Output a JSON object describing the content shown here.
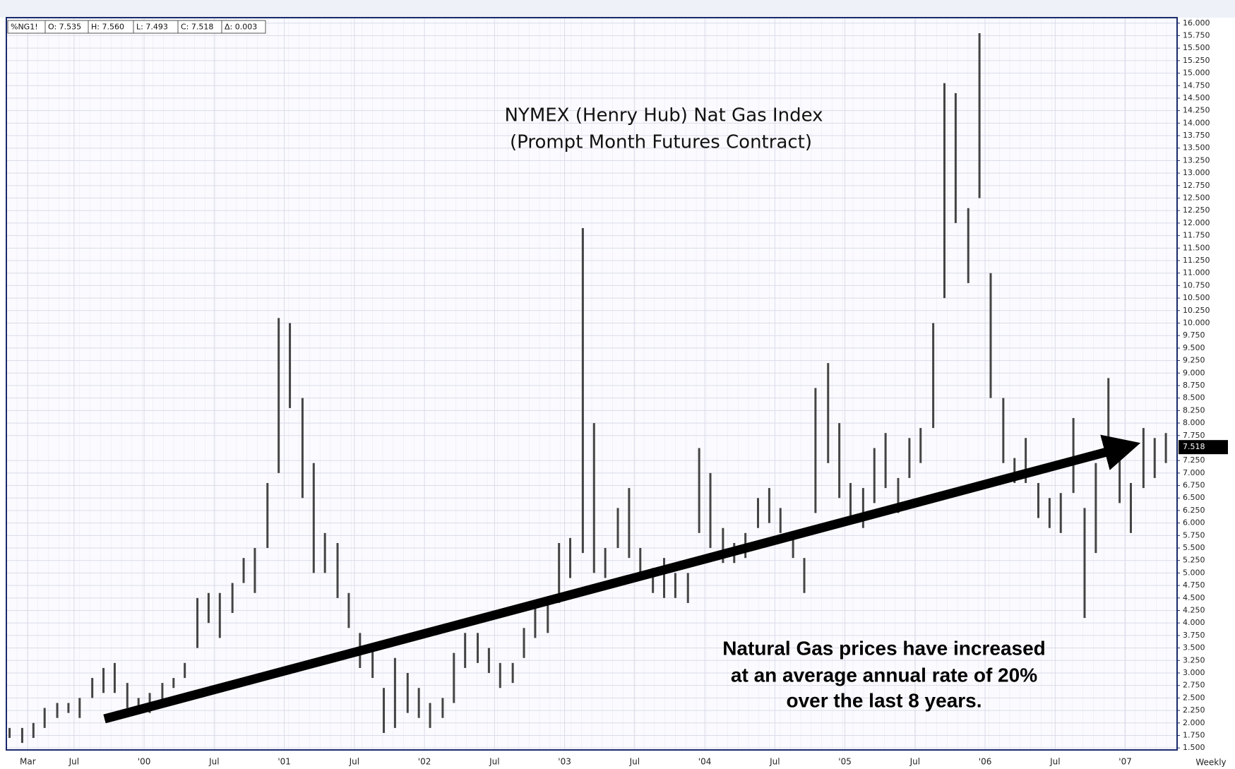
{
  "chart_data": {
    "type": "range_bar",
    "header_fields": [
      "%NG1!",
      "O: 7.535",
      "H: 7.560",
      "L: 7.493",
      "C: 7.518",
      "Δ: 0.003"
    ],
    "title": [
      "NYMEX (Henry Hub) Nat Gas Index",
      "(Prompt Month Futures Contract)"
    ],
    "annotation": [
      "Natural Gas prices have increased",
      "at an average annual rate of 20%",
      "over the last 8 years."
    ],
    "interval_label": "Weekly",
    "last_price": 7.518,
    "color": "#444444",
    "grid": true,
    "x": [
      1999.04,
      1999.13,
      1999.21,
      1999.29,
      1999.38,
      1999.46,
      1999.54,
      1999.63,
      1999.71,
      1999.79,
      1999.88,
      1999.96,
      2000.04,
      2000.13,
      2000.21,
      2000.29,
      2000.38,
      2000.46,
      2000.54,
      2000.63,
      2000.71,
      2000.79,
      2000.88,
      2000.96,
      2001.04,
      2001.13,
      2001.21,
      2001.29,
      2001.38,
      2001.46,
      2001.54,
      2001.63,
      2001.71,
      2001.79,
      2001.88,
      2001.96,
      2002.04,
      2002.13,
      2002.21,
      2002.29,
      2002.38,
      2002.46,
      2002.54,
      2002.63,
      2002.71,
      2002.79,
      2002.88,
      2002.96,
      2003.04,
      2003.13,
      2003.21,
      2003.29,
      2003.38,
      2003.46,
      2003.54,
      2003.63,
      2003.71,
      2003.79,
      2003.88,
      2003.96,
      2004.04,
      2004.13,
      2004.21,
      2004.29,
      2004.38,
      2004.46,
      2004.54,
      2004.63,
      2004.71,
      2004.79,
      2004.88,
      2004.96,
      2005.04,
      2005.13,
      2005.21,
      2005.29,
      2005.38,
      2005.46,
      2005.54,
      2005.63,
      2005.71,
      2005.79,
      2005.88,
      2005.96,
      2006.04,
      2006.13,
      2006.21,
      2006.29,
      2006.38,
      2006.46,
      2006.54,
      2006.63,
      2006.71,
      2006.79,
      2006.88,
      2006.96,
      2007.04,
      2007.13,
      2007.21,
      2007.29
    ],
    "high": [
      1.9,
      1.9,
      2.0,
      2.3,
      2.4,
      2.4,
      2.5,
      2.9,
      3.1,
      3.2,
      2.8,
      2.5,
      2.6,
      2.8,
      2.9,
      3.2,
      4.5,
      4.6,
      4.6,
      4.8,
      5.3,
      5.5,
      6.8,
      10.1,
      10.0,
      8.5,
      7.2,
      5.8,
      5.6,
      4.6,
      3.8,
      3.5,
      2.7,
      3.3,
      3.0,
      2.7,
      2.4,
      2.5,
      3.4,
      3.8,
      3.8,
      3.5,
      3.2,
      3.2,
      3.9,
      4.3,
      4.4,
      5.6,
      5.7,
      11.9,
      8.0,
      5.5,
      6.3,
      6.7,
      5.5,
      5.1,
      5.3,
      5.0,
      5.0,
      7.5,
      7.0,
      5.9,
      5.6,
      5.8,
      6.5,
      6.7,
      6.3,
      5.8,
      5.3,
      8.7,
      9.2,
      8.0,
      6.8,
      6.7,
      7.5,
      7.8,
      6.9,
      7.7,
      7.9,
      10.0,
      14.8,
      14.6,
      12.3,
      15.8,
      11.0,
      8.5,
      7.3,
      7.7,
      6.8,
      6.5,
      6.6,
      8.1,
      6.3,
      7.2,
      8.9,
      7.6,
      6.8,
      7.9,
      7.7,
      7.8
    ],
    "low": [
      1.7,
      1.6,
      1.7,
      1.9,
      2.1,
      2.2,
      2.1,
      2.5,
      2.6,
      2.6,
      2.3,
      2.2,
      2.2,
      2.4,
      2.7,
      2.9,
      3.5,
      4.0,
      3.7,
      4.2,
      4.8,
      4.6,
      5.5,
      7.0,
      8.3,
      6.5,
      5.0,
      5.0,
      4.5,
      3.9,
      3.1,
      2.9,
      1.8,
      1.9,
      2.2,
      2.1,
      1.9,
      2.1,
      2.4,
      3.1,
      3.2,
      3.0,
      2.7,
      2.8,
      3.3,
      3.7,
      3.8,
      4.4,
      4.9,
      5.4,
      5.0,
      4.9,
      5.5,
      5.3,
      4.9,
      4.6,
      4.5,
      4.5,
      4.4,
      5.8,
      5.5,
      5.2,
      5.2,
      5.3,
      5.9,
      6.0,
      5.8,
      5.3,
      4.6,
      6.2,
      7.2,
      6.5,
      6.0,
      5.9,
      6.4,
      6.7,
      6.2,
      6.9,
      7.2,
      7.9,
      10.5,
      12.0,
      10.8,
      12.5,
      8.5,
      7.2,
      6.8,
      6.8,
      6.1,
      5.9,
      5.8,
      6.6,
      4.1,
      5.4,
      7.4,
      6.4,
      5.8,
      6.7,
      6.9,
      7.2
    ],
    "xlim": [
      1999.017,
      2007.37
    ],
    "xticks": [
      {
        "value": 1999.17,
        "label": "Mar"
      },
      {
        "value": 1999.5,
        "label": "Jul"
      },
      {
        "value": 2000,
        "label": "'00"
      },
      {
        "value": 2000.5,
        "label": "Jul"
      },
      {
        "value": 2001,
        "label": "'01"
      },
      {
        "value": 2001.5,
        "label": "Jul"
      },
      {
        "value": 2002,
        "label": "'02"
      },
      {
        "value": 2002.5,
        "label": "Jul"
      },
      {
        "value": 2003,
        "label": "'03"
      },
      {
        "value": 2003.5,
        "label": "Jul"
      },
      {
        "value": 2004,
        "label": "'04"
      },
      {
        "value": 2004.5,
        "label": "Jul"
      },
      {
        "value": 2005,
        "label": "'05"
      },
      {
        "value": 2005.5,
        "label": "Jul"
      },
      {
        "value": 2006,
        "label": "'06"
      },
      {
        "value": 2006.5,
        "label": "Jul"
      },
      {
        "value": 2007,
        "label": "'07"
      }
    ],
    "ylim": [
      1.46,
      16.11
    ],
    "yticks": [
      {
        "value": 1.5,
        "label": "1.500"
      },
      {
        "value": 1.75,
        "label": "1.750"
      },
      {
        "value": 2,
        "label": "2.000"
      },
      {
        "value": 2.25,
        "label": "2.250"
      },
      {
        "value": 2.5,
        "label": "2.500"
      },
      {
        "value": 2.75,
        "label": "2.750"
      },
      {
        "value": 3,
        "label": "3.000"
      },
      {
        "value": 3.25,
        "label": "3.250"
      },
      {
        "value": 3.5,
        "label": "3.500"
      },
      {
        "value": 3.75,
        "label": "3.750"
      },
      {
        "value": 4,
        "label": "4.000"
      },
      {
        "value": 4.25,
        "label": "4.250"
      },
      {
        "value": 4.5,
        "label": "4.500"
      },
      {
        "value": 4.75,
        "label": "4.750"
      },
      {
        "value": 5,
        "label": "5.000"
      },
      {
        "value": 5.25,
        "label": "5.250"
      },
      {
        "value": 5.5,
        "label": "5.500"
      },
      {
        "value": 5.75,
        "label": "5.750"
      },
      {
        "value": 6,
        "label": "6.000"
      },
      {
        "value": 6.25,
        "label": "6.250"
      },
      {
        "value": 6.5,
        "label": "6.500"
      },
      {
        "value": 6.75,
        "label": "6.750"
      },
      {
        "value": 7,
        "label": "7.000"
      },
      {
        "value": 7.25,
        "label": "7.250"
      },
      {
        "value": 7.75,
        "label": "7.750"
      },
      {
        "value": 8,
        "label": "8.000"
      },
      {
        "value": 8.25,
        "label": "8.250"
      },
      {
        "value": 8.5,
        "label": "8.500"
      },
      {
        "value": 8.75,
        "label": "8.750"
      },
      {
        "value": 9,
        "label": "9.000"
      },
      {
        "value": 9.25,
        "label": "9.250"
      },
      {
        "value": 9.5,
        "label": "9.500"
      },
      {
        "value": 9.75,
        "label": "9.750"
      },
      {
        "value": 10,
        "label": "10.000"
      },
      {
        "value": 10.25,
        "label": "10.250"
      },
      {
        "value": 10.5,
        "label": "10.500"
      },
      {
        "value": 10.75,
        "label": "10.750"
      },
      {
        "value": 11,
        "label": "11.000"
      },
      {
        "value": 11.25,
        "label": "11.250"
      },
      {
        "value": 11.5,
        "label": "11.500"
      },
      {
        "value": 11.75,
        "label": "11.750"
      },
      {
        "value": 12,
        "label": "12.000"
      },
      {
        "value": 12.25,
        "label": "12.250"
      },
      {
        "value": 12.5,
        "label": "12.500"
      },
      {
        "value": 12.75,
        "label": "12.750"
      },
      {
        "value": 13,
        "label": "13.000"
      },
      {
        "value": 13.25,
        "label": "13.250"
      },
      {
        "value": 13.5,
        "label": "13.500"
      },
      {
        "value": 13.75,
        "label": "13.750"
      },
      {
        "value": 14,
        "label": "14.000"
      },
      {
        "value": 14.25,
        "label": "14.250"
      },
      {
        "value": 14.5,
        "label": "14.500"
      },
      {
        "value": 14.75,
        "label": "14.750"
      },
      {
        "value": 15,
        "label": "15.000"
      },
      {
        "value": 15.25,
        "label": "15.250"
      },
      {
        "value": 15.5,
        "label": "15.500"
      },
      {
        "value": 15.75,
        "label": "15.750"
      },
      {
        "value": 16,
        "label": "16.000"
      }
    ]
  }
}
